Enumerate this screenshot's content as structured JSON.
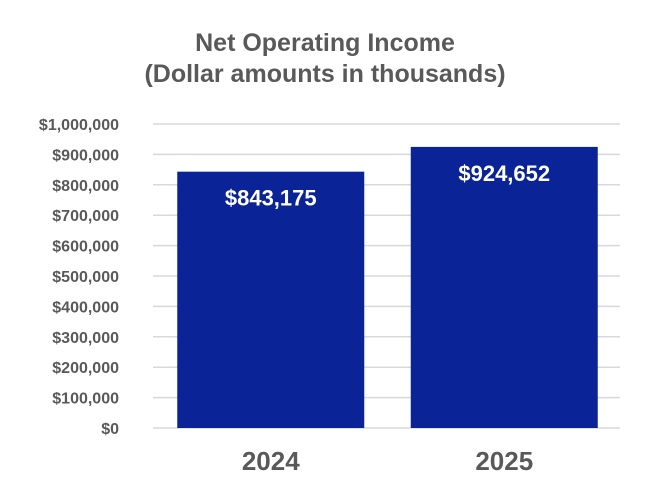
{
  "chart_data": {
    "type": "bar",
    "title": "Net Operating Income",
    "subtitle": "(Dollar amounts in thousands)",
    "categories": [
      "2024",
      "2025"
    ],
    "values": [
      843175,
      924652
    ],
    "value_labels": [
      "$843,175",
      "$924,652"
    ],
    "ylim": [
      0,
      1000000
    ],
    "yticks": [
      0,
      100000,
      200000,
      300000,
      400000,
      500000,
      600000,
      700000,
      800000,
      900000,
      1000000
    ],
    "ytick_labels": [
      "$0",
      "$100,000",
      "$200,000",
      "$300,000",
      "$400,000",
      "$500,000",
      "$600,000",
      "$700,000",
      "$800,000",
      "$900,000",
      "$1,000,000"
    ],
    "grid": true,
    "legend": "none",
    "bar_color": "#0a2396",
    "text_color": "#595959",
    "grid_color": "#d9d9d9"
  }
}
